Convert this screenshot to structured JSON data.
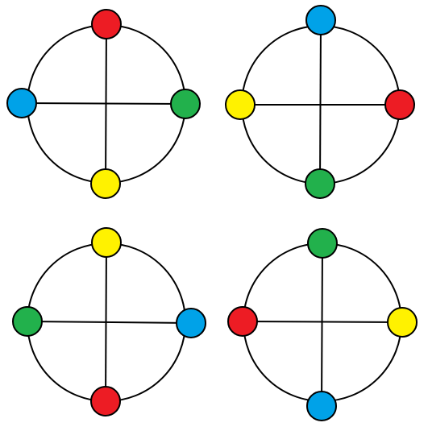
{
  "palette": {
    "red": "#ed1c24",
    "blue": "#00a2e8",
    "green": "#22b14c",
    "yellow": "#fff200"
  },
  "figures": [
    {
      "name": "top-left",
      "top": "red",
      "right": "green",
      "bottom": "yellow",
      "left": "blue"
    },
    {
      "name": "top-right",
      "top": "blue",
      "right": "red",
      "bottom": "green",
      "left": "yellow"
    },
    {
      "name": "bottom-left",
      "top": "yellow",
      "right": "blue",
      "bottom": "red",
      "left": "green"
    },
    {
      "name": "bottom-right",
      "top": "green",
      "right": "yellow",
      "bottom": "blue",
      "left": "red"
    }
  ]
}
